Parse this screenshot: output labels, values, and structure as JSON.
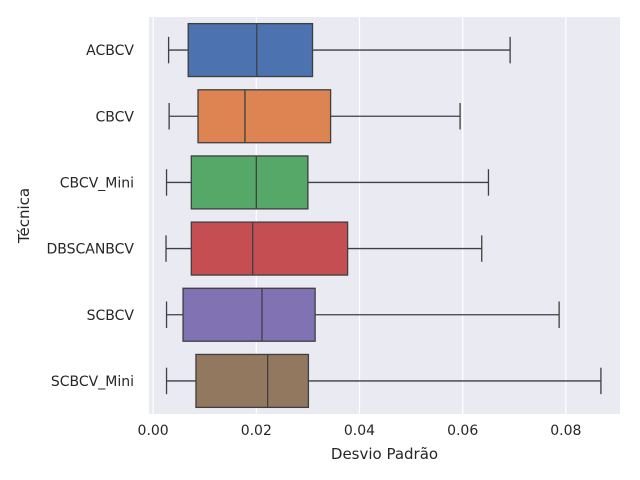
{
  "chart_data": {
    "type": "boxplot",
    "orientation": "horizontal",
    "title": "",
    "xlabel": "Desvio Padrão",
    "ylabel": "Técnica",
    "xlim": [
      -0.0008,
      0.0905
    ],
    "xticks": [
      0.0,
      0.02,
      0.04,
      0.06,
      0.08
    ],
    "xtick_labels": [
      "0.00",
      "0.02",
      "0.04",
      "0.06",
      "0.08"
    ],
    "grid": true,
    "categories": [
      "ACBCV",
      "CBCV",
      "CBCV_Mini",
      "DBSCANBCV",
      "SCBCV",
      "SCBCV_Mini"
    ],
    "boxes": [
      {
        "category": "ACBCV",
        "whisker_low": 0.003,
        "q1": 0.0068,
        "median": 0.0201,
        "q3": 0.0309,
        "whisker_high": 0.0692,
        "color": "#4c72b0"
      },
      {
        "category": "CBCV",
        "whisker_low": 0.0031,
        "q1": 0.0087,
        "median": 0.0178,
        "q3": 0.0344,
        "whisker_high": 0.0595,
        "color": "#dd8452"
      },
      {
        "category": "CBCV_Mini",
        "whisker_low": 0.0026,
        "q1": 0.0074,
        "median": 0.02,
        "q3": 0.03,
        "whisker_high": 0.065,
        "color": "#55a868"
      },
      {
        "category": "DBSCANBCV",
        "whisker_low": 0.0025,
        "q1": 0.0074,
        "median": 0.0193,
        "q3": 0.0377,
        "whisker_high": 0.0637,
        "color": "#c44e52"
      },
      {
        "category": "SCBCV",
        "whisker_low": 0.0026,
        "q1": 0.0058,
        "median": 0.0211,
        "q3": 0.0314,
        "whisker_high": 0.0787,
        "color": "#8172b3"
      },
      {
        "category": "SCBCV_Mini",
        "whisker_low": 0.0026,
        "q1": 0.0083,
        "median": 0.0222,
        "q3": 0.0301,
        "whisker_high": 0.0868,
        "color": "#937860"
      }
    ],
    "colors": {
      "background": "#eaeaf2",
      "grid": "#ffffff",
      "line": "#3f3f3f",
      "text": "#262626"
    }
  }
}
